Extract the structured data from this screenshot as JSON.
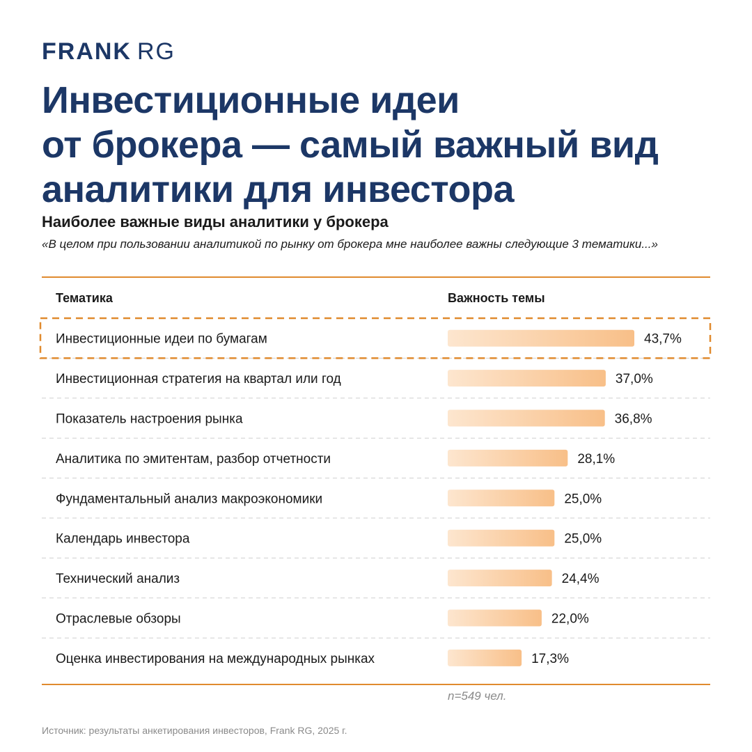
{
  "brand": {
    "bold": "FRANK",
    "light": "RG"
  },
  "title_lines": [
    "Инвестиционные идеи",
    "от брокера — самый важный вид",
    "аналитики для инвестора"
  ],
  "subtitle": "Наиболее важные виды аналитики у брокера",
  "quote": "«В целом при пользовании аналитикой по рынку от брокера мне наиболее важны следующие 3 тематики...»",
  "colors": {
    "brand": "#1c3766",
    "accent": "#e08a2e",
    "bar_light": "#fde3c8",
    "bar_dark": "#f8c08a"
  },
  "chart_data": {
    "type": "bar",
    "orientation": "horizontal",
    "column_headers": {
      "category": "Тематика",
      "value": "Важность темы"
    },
    "categories": [
      "Инвестиционные идеи по бумагам",
      "Инвестиционная стратегия на квартал или год",
      "Показатель настроения рынка",
      "Аналитика по эмитентам, разбор отчетности",
      "Фундаментальный анализ макроэкономики",
      "Календарь инвестора",
      "Технический анализ",
      "Отраслевые обзоры",
      "Оценка инвестирования на международных рынках"
    ],
    "values": [
      43.7,
      37.0,
      36.8,
      28.1,
      25.0,
      25.0,
      24.4,
      22.0,
      17.3
    ],
    "value_labels": [
      "43,7%",
      "37,0%",
      "36,8%",
      "28,1%",
      "25,0%",
      "25,0%",
      "24,4%",
      "22,0%",
      "17,3%"
    ],
    "highlighted_index": 0,
    "unit": "%"
  },
  "sample_note": "n=549 чел.",
  "source": "Источник: результаты анкетирования инвесторов, Frank RG, 2025 г."
}
